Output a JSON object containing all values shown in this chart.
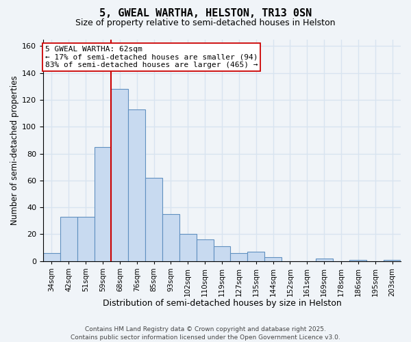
{
  "title": "5, GWEAL WARTHA, HELSTON, TR13 0SN",
  "subtitle": "Size of property relative to semi-detached houses in Helston",
  "xlabel": "Distribution of semi-detached houses by size in Helston",
  "ylabel": "Number of semi-detached properties",
  "bar_labels": [
    "34sqm",
    "42sqm",
    "51sqm",
    "59sqm",
    "68sqm",
    "76sqm",
    "85sqm",
    "93sqm",
    "102sqm",
    "110sqm",
    "119sqm",
    "127sqm",
    "135sqm",
    "144sqm",
    "152sqm",
    "161sqm",
    "169sqm",
    "178sqm",
    "186sqm",
    "195sqm",
    "203sqm"
  ],
  "bar_values": [
    6,
    33,
    33,
    85,
    128,
    113,
    62,
    35,
    20,
    16,
    11,
    6,
    7,
    3,
    0,
    0,
    2,
    0,
    1,
    0,
    1
  ],
  "bar_color": "#c8daf0",
  "bar_edge_color": "#6090c0",
  "ylim": [
    0,
    165
  ],
  "yticks": [
    0,
    20,
    40,
    60,
    80,
    100,
    120,
    140,
    160
  ],
  "vline_x_index": 3.5,
  "vline_color": "#cc0000",
  "annotation_line1": "5 GWEAL WARTHA: 62sqm",
  "annotation_line2": "← 17% of semi-detached houses are smaller (94)",
  "annotation_line3": "83% of semi-detached houses are larger (465) →",
  "footer_text": "Contains HM Land Registry data © Crown copyright and database right 2025.\nContains public sector information licensed under the Open Government Licence v3.0.",
  "background_color": "#f0f4f8",
  "grid_color": "#d8e4f0",
  "title_fontsize": 11,
  "subtitle_fontsize": 9,
  "xlabel_fontsize": 9,
  "ylabel_fontsize": 8.5,
  "footer_fontsize": 6.5,
  "annot_fontsize": 8
}
